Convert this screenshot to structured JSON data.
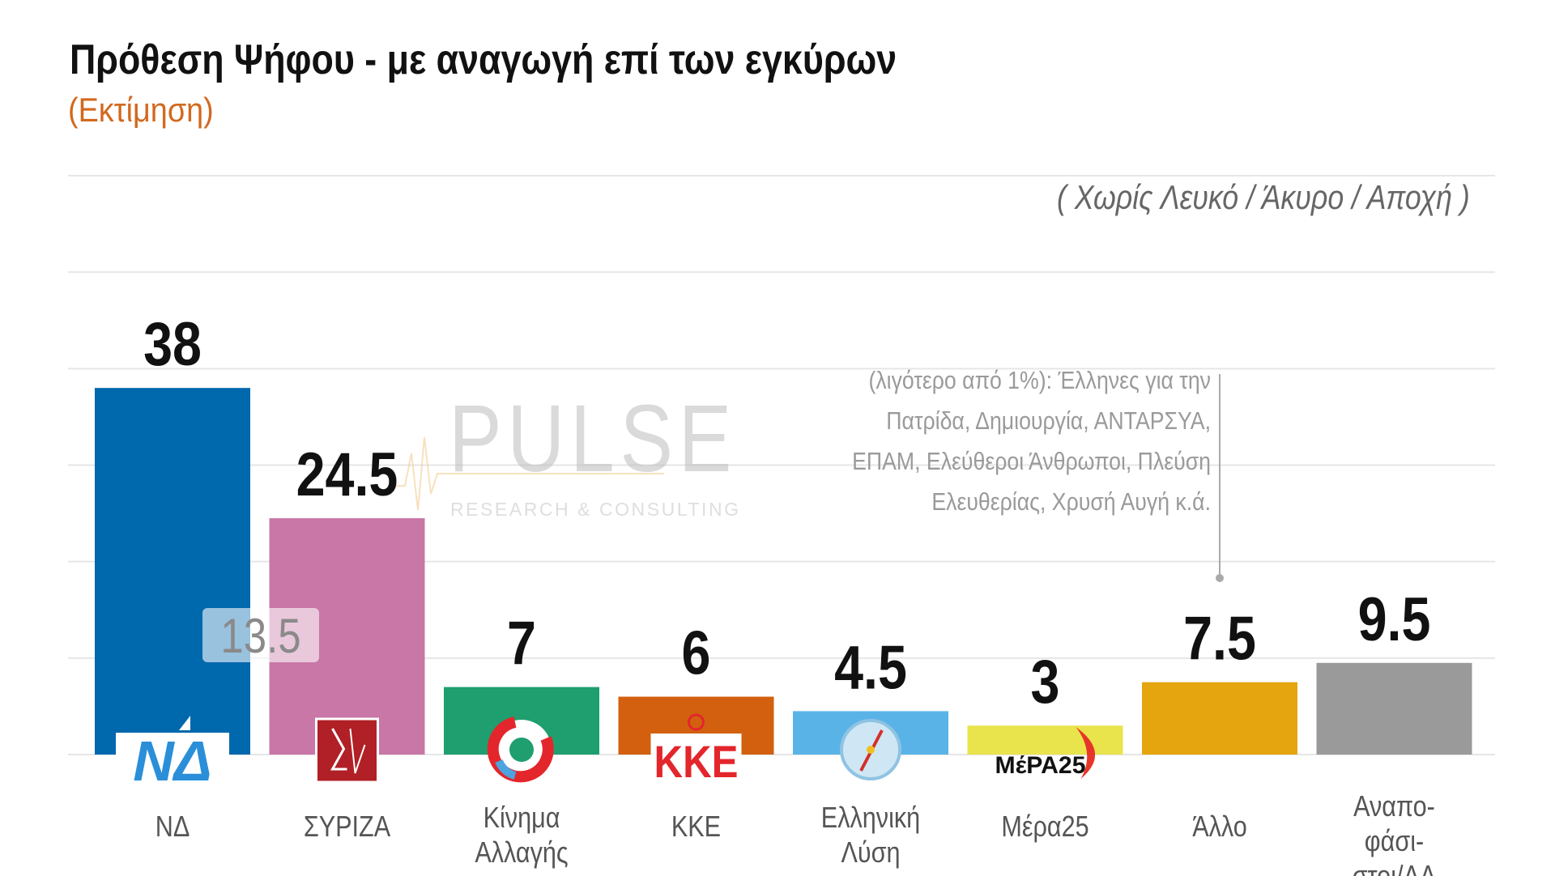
{
  "chart_data": {
    "type": "bar",
    "title": "Πρόθεση Ψήφου - με αναγωγή επί των εγκύρων",
    "subtitle": "(Εκτίμηση)",
    "note": "( Χωρίς Λευκό / Άκυρο / Αποχή )",
    "categories": [
      [
        "ΝΔ"
      ],
      [
        "ΣΥΡΙΖΑ"
      ],
      [
        "Κίνημα",
        "Αλλαγής"
      ],
      [
        "ΚΚΕ"
      ],
      [
        "Ελληνική",
        "Λύση"
      ],
      [
        "Μέρα25"
      ],
      [
        "Άλλο"
      ],
      [
        "Αναπο-",
        "φάσι-",
        "στοι/ΔΑ"
      ]
    ],
    "values": [
      38,
      24.5,
      7,
      6,
      4.5,
      3,
      7.5,
      9.5
    ],
    "value_labels": [
      "38",
      "24.5",
      "7",
      "6",
      "4.5",
      "3",
      "7.5",
      "9.5"
    ],
    "colors": [
      "#0068ad",
      "#c877a6",
      "#1f9e6f",
      "#d2600f",
      "#5ab3e6",
      "#e9e44c",
      "#e5a50e",
      "#9a9a9a"
    ],
    "logos": [
      "nd-logo",
      "syriza-logo",
      "kinal-logo",
      "kke-logo",
      "elliniki-lysi-logo",
      "mera25-logo",
      "",
      ""
    ],
    "logo_text": {
      "nd": "ΝΔ",
      "kke": "ΚΚΕ",
      "mera25": "ΜέΡΑ25"
    },
    "ylim": [
      0,
      60
    ],
    "grid_step": 10,
    "grid": true,
    "xlabel": "",
    "ylabel": "",
    "overlay_label": "13.5",
    "annotation": {
      "target_category": "Άλλο",
      "lines": [
        "(λιγότερο από 1%): Έλληνες για την",
        "Πατρίδα, Δημιουργία, ΑΝΤΑΡΣΥΑ,",
        "ΕΠΑΜ, Ελεύθεροι Άνθρωποι, Πλεύση",
        "Ελευθερίας, Χρυσή Αυγή κ.ά."
      ]
    },
    "watermark": {
      "name": "PULSE",
      "tagline": "RESEARCH & CONSULTING"
    }
  }
}
